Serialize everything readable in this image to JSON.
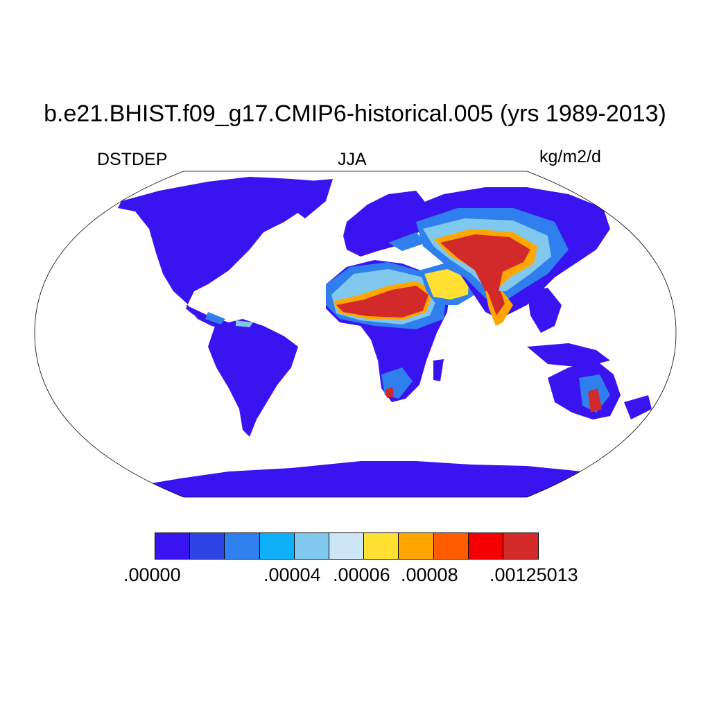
{
  "title": "b.e21.BHIST.f09_g17.CMIP6-historical.005 (yrs 1989-2013)",
  "left_label": "DSTDEP",
  "center_label": "JJA",
  "right_label": "kg/m2/d",
  "colorbar": {
    "colors": [
      "#3a14f0",
      "#2f44e4",
      "#2f7fee",
      "#0fb0f8",
      "#80c8ee",
      "#cde6f6",
      "#ffe033",
      "#ffa700",
      "#ff5c00",
      "#f40000",
      "#d22a2a"
    ],
    "labels": [
      ".00000",
      ".00004",
      ".00006",
      ".00008",
      ".00125013"
    ]
  },
  "map_colors": {
    "ocean": "#ffffff",
    "low": "#3a14f0",
    "mid_low": "#2f7fee",
    "mid": "#80c8ee",
    "yellow": "#ffe033",
    "orange": "#ffa700",
    "dark_orange": "#ff5c00",
    "high": "#d22a2a"
  }
}
